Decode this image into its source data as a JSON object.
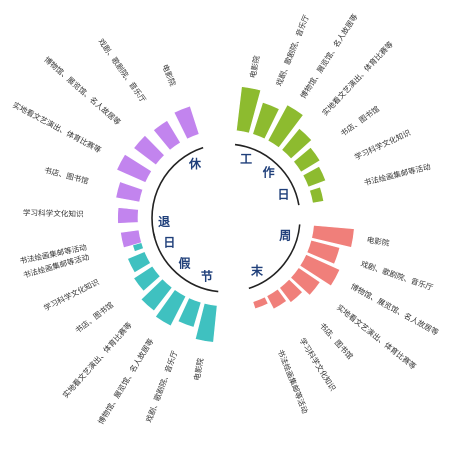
{
  "chart_data": {
    "type": "radial-bar",
    "categories": [
      "电影院",
      "戏剧、歌剧院、音乐厅",
      "博物馆、展览馆、名人故居等",
      "实地看文艺演出、体育比赛等",
      "书店、图书馆",
      "学习科学文化知识",
      "书法绘画集邮等活动"
    ],
    "groups": [
      {
        "name": "工作日",
        "chars": [
          "工",
          "作",
          "日"
        ],
        "color": "#8dbb2f",
        "values": [
          24,
          18,
          22,
          15,
          12,
          10,
          6
        ]
      },
      {
        "name": "周末",
        "chars": [
          "周",
          "末"
        ],
        "color": "#f07f7a",
        "values": [
          22,
          16,
          20,
          14,
          10,
          8,
          4
        ]
      },
      {
        "name": "节假日",
        "chars": [
          "节",
          "假",
          "日"
        ],
        "color": "#3fc1c0",
        "values": [
          20,
          14,
          18,
          16,
          12,
          10,
          5
        ]
      },
      {
        "name": "退休",
        "chars": [
          "退",
          "休"
        ],
        "color": "#c284ee",
        "values": [
          16,
          14,
          15,
          17,
          13,
          11,
          10
        ]
      }
    ]
  }
}
